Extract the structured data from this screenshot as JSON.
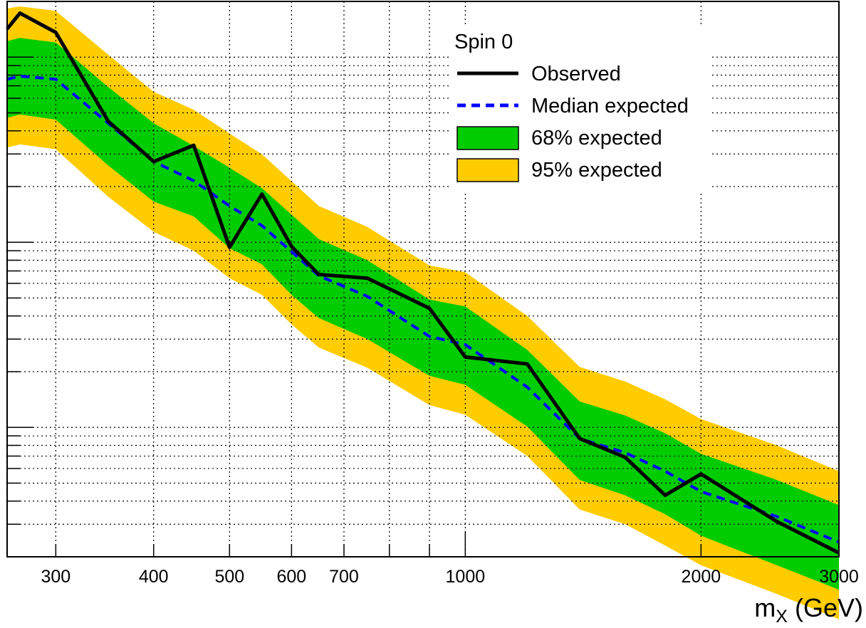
{
  "chart_data": {
    "type": "line",
    "title": "",
    "xlabel": "m",
    "xlabel_sub": "X",
    "xlabel_unit": " (GeV)",
    "ylabel": "",
    "x_scale": "log",
    "y_scale": "log",
    "xlim": [
      260,
      3000
    ],
    "ylim": [
      0.02,
      20
    ],
    "grid": true,
    "x_tick_labels": [
      "300",
      "400",
      "500",
      "600",
      "700",
      "1000",
      "2000",
      "3000"
    ],
    "x_tick_values": [
      300,
      400,
      500,
      600,
      700,
      1000,
      2000,
      3000
    ],
    "legend": {
      "position": "top-right",
      "header": "Spin 0",
      "entries": [
        {
          "label": "Observed",
          "style": "solid",
          "color": "#000000"
        },
        {
          "label": "Median expected",
          "style": "dashed",
          "color": "#0000ff"
        },
        {
          "label": "68% expected",
          "style": "fill",
          "color": "#00cc00"
        },
        {
          "label": "95% expected",
          "style": "fill",
          "color": "#ffcc00"
        }
      ]
    },
    "x": [
      260,
      270,
      300,
      350,
      400,
      450,
      500,
      550,
      600,
      650,
      750,
      900,
      1000,
      1200,
      1400,
      1600,
      1800,
      2000,
      2500,
      3000
    ],
    "series": [
      {
        "name": "Observed",
        "color": "#000000",
        "values": [
          14.2,
          17.3,
          13.6,
          4.5,
          2.73,
          3.34,
          0.94,
          1.82,
          0.95,
          0.67,
          0.64,
          0.44,
          0.24,
          0.22,
          0.087,
          0.069,
          0.043,
          0.056,
          0.031,
          0.021
        ]
      },
      {
        "name": "Median expected",
        "color": "#0000ff",
        "values": [
          7.6,
          7.9,
          7.6,
          4.4,
          2.73,
          2.15,
          1.57,
          1.23,
          0.89,
          0.66,
          0.51,
          0.31,
          0.28,
          0.165,
          0.087,
          0.073,
          0.058,
          0.045,
          0.033,
          0.024
        ]
      },
      {
        "name": "68% expected",
        "color": "#00cc00",
        "lower": [
          4.7,
          4.9,
          4.6,
          2.6,
          1.66,
          1.38,
          0.93,
          0.76,
          0.52,
          0.39,
          0.3,
          0.19,
          0.17,
          0.101,
          0.052,
          0.043,
          0.034,
          0.026,
          0.018,
          0.0133
        ],
        "upper": [
          12.2,
          12.7,
          12.0,
          6.9,
          4.4,
          3.31,
          2.53,
          1.96,
          1.41,
          1.04,
          0.8,
          0.49,
          0.45,
          0.262,
          0.138,
          0.116,
          0.093,
          0.072,
          0.052,
          0.038
        ]
      },
      {
        "name": "95% expected",
        "color": "#ffcc00",
        "lower": [
          3.25,
          3.38,
          3.18,
          1.76,
          1.14,
          0.9,
          0.64,
          0.52,
          0.36,
          0.27,
          0.21,
          0.132,
          0.117,
          0.07,
          0.036,
          0.03,
          0.023,
          0.018,
          0.0126,
          0.0092
        ],
        "upper": [
          18.3,
          18.8,
          17.8,
          10.3,
          6.5,
          5.2,
          3.87,
          2.99,
          2.14,
          1.57,
          1.21,
          0.75,
          0.69,
          0.4,
          0.212,
          0.177,
          0.142,
          0.111,
          0.08,
          0.058
        ]
      }
    ]
  }
}
